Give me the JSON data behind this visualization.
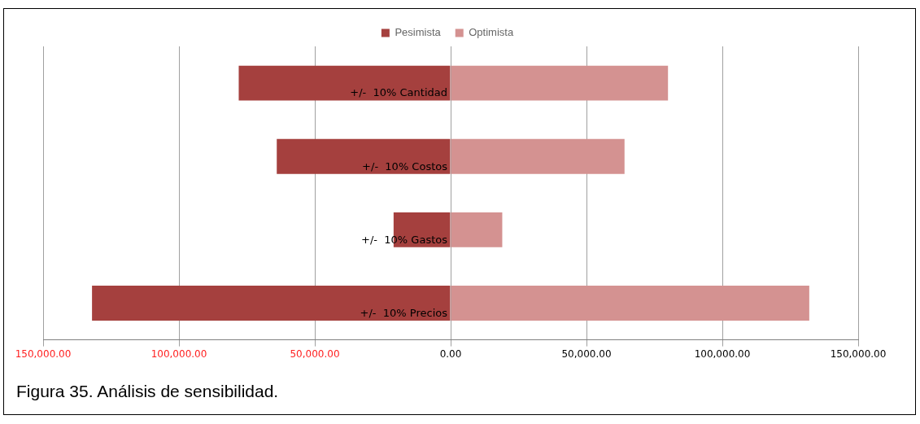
{
  "chart_data": {
    "type": "bar",
    "orientation": "horizontal",
    "stacked": true,
    "categories": [
      "+/-  10% Cantidad",
      "+/-  10% Costos",
      "+/-  10% Gastos",
      "+/-  10% Precios"
    ],
    "series": [
      {
        "name": "Pesimista",
        "color": "#a5403e",
        "values": [
          -78000,
          -64000,
          -21000,
          -132000
        ]
      },
      {
        "name": "Optimista",
        "color": "#d49291",
        "values": [
          80000,
          64000,
          19000,
          132000
        ]
      }
    ],
    "xlim": [
      -150000,
      150000
    ],
    "xticks": [
      {
        "value": -150000,
        "label": "150,000.00"
      },
      {
        "value": -100000,
        "label": "100,000.00"
      },
      {
        "value": -50000,
        "label": "50,000.00"
      },
      {
        "value": 0,
        "label": "0.00"
      },
      {
        "value": 50000,
        "label": "50,000.00"
      },
      {
        "value": 100000,
        "label": "100,000.00"
      },
      {
        "value": 150000,
        "label": "150,000.00"
      }
    ],
    "grid": "x",
    "legend": "top",
    "annotations": [
      "Figura 35.  Análisis de sensibilidad."
    ]
  }
}
